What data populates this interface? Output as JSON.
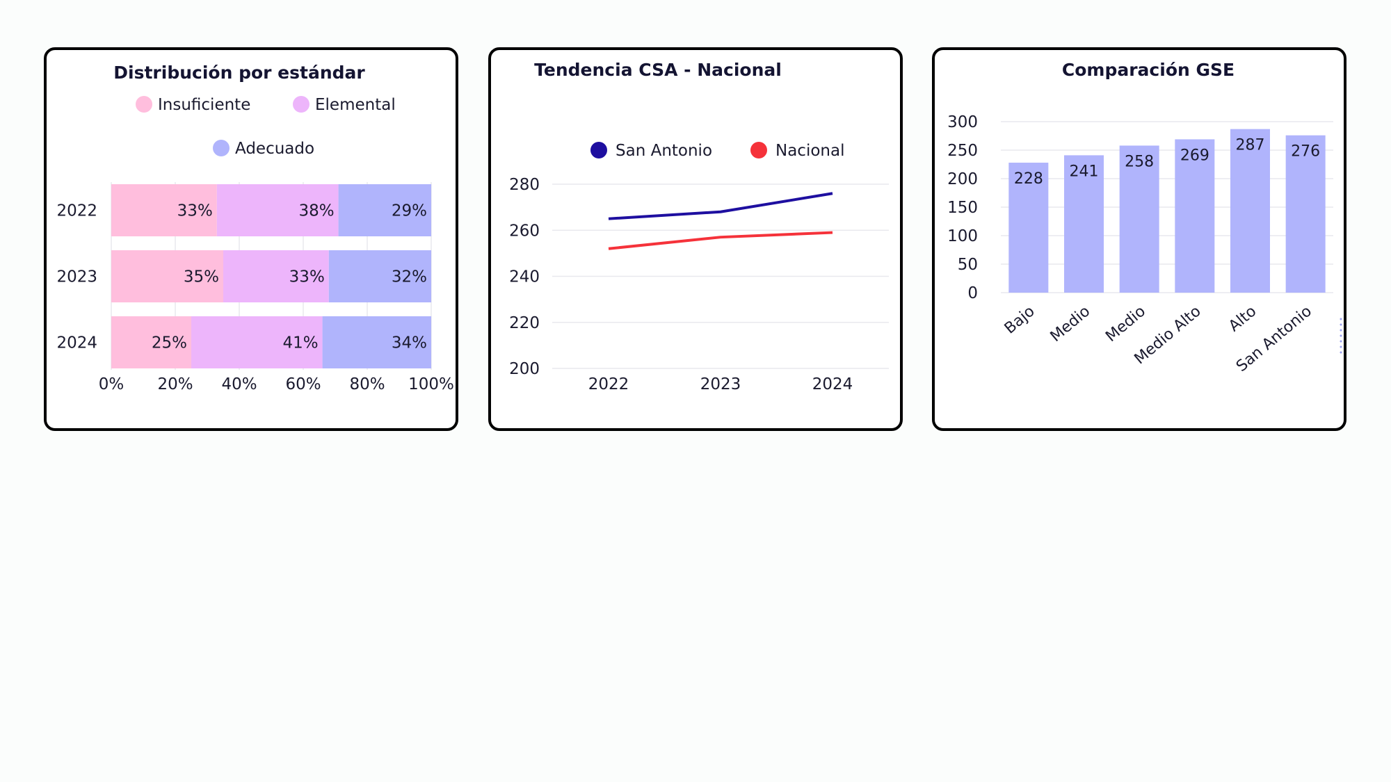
{
  "chart_data": [
    {
      "type": "bar",
      "orientation": "horizontal",
      "stacked": true,
      "title": "Distribución por estándar",
      "categories": [
        "2022",
        "2023",
        "2024"
      ],
      "series": [
        {
          "name": "Insuficiente",
          "values": [
            33,
            35,
            25
          ],
          "labels": [
            "33%",
            "35%",
            "25%"
          ],
          "color": "#ffbedd"
        },
        {
          "name": "Elemental",
          "values": [
            38,
            33,
            41
          ],
          "labels": [
            "38%",
            "33%",
            "41%"
          ],
          "color": "#edb5fb"
        },
        {
          "name": "Adecuado",
          "values": [
            29,
            32,
            34
          ],
          "labels": [
            "29%",
            "32%",
            "34%"
          ],
          "color": "#b0b4fc"
        }
      ],
      "xlim": [
        0,
        100
      ],
      "x_ticks": [
        "0%",
        "20%",
        "40%",
        "60%",
        "80%",
        "100%"
      ],
      "x_tick_values": [
        0,
        20,
        40,
        60,
        80,
        100
      ],
      "legend_position": "top",
      "grid": true
    },
    {
      "type": "line",
      "title": "Tendencia CSA - Nacional",
      "x": [
        "2022",
        "2023",
        "2024"
      ],
      "series": [
        {
          "name": "San Antonio",
          "values": [
            265,
            268,
            276
          ],
          "color": "#1e0fa0"
        },
        {
          "name": "Nacional",
          "values": [
            252,
            257,
            259
          ],
          "color": "#f5323a"
        }
      ],
      "ylim": [
        200,
        280
      ],
      "y_ticks": [
        "200",
        "220",
        "240",
        "260",
        "280"
      ],
      "y_tick_values": [
        200,
        220,
        240,
        260,
        280
      ],
      "legend_position": "top",
      "grid": true
    },
    {
      "type": "bar",
      "title": "Comparación GSE",
      "categories": [
        "Bajo",
        "Medio",
        "Medio",
        "Medio Alto",
        "Alto",
        "San Antonio"
      ],
      "values": [
        228,
        241,
        258,
        269,
        287,
        276
      ],
      "labels": [
        "228",
        "241",
        "258",
        "269",
        "287",
        "276"
      ],
      "color": "#b0b4fc",
      "ylim": [
        0,
        300
      ],
      "y_ticks": [
        "0",
        "50",
        "100",
        "150",
        "200",
        "250",
        "300"
      ],
      "y_tick_values": [
        0,
        50,
        100,
        150,
        200,
        250,
        300
      ],
      "grid": true
    }
  ]
}
